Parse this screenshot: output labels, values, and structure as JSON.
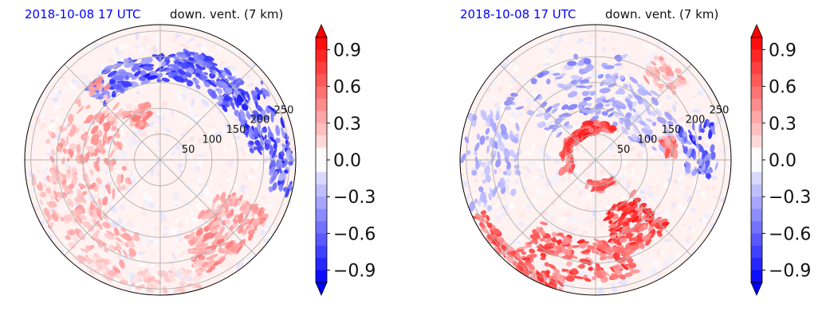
{
  "colors": {
    "negative": "#0000ff",
    "positive": "#ff0000",
    "neutral": "#ffffff",
    "grid": "#b0b0b0",
    "title_date": "#0000ff",
    "title_var": "#111111"
  },
  "panels": [
    {
      "title_left": "2018-10-08 17 UTC",
      "title_right": "down. vent. (7 km)"
    },
    {
      "title_left": "2018-10-08 17 UTC",
      "title_right": "down. vent. (7 km)"
    }
  ],
  "chart_data": [
    {
      "type": "heatmap",
      "projection": "polar",
      "radial_ticks": [
        "50",
        "100",
        "150",
        "200",
        "250"
      ],
      "radial_values": [
        50,
        100,
        150,
        200,
        250
      ],
      "angular_grid_deg": [
        0,
        45,
        90,
        135,
        180,
        225,
        270,
        315
      ],
      "colorbar": {
        "min": -1.0,
        "max": 1.0,
        "levels": 20,
        "extend": "both",
        "cmap": "bwr",
        "ticks": [
          0.9,
          0.6,
          0.3,
          0.0,
          -0.3,
          -0.6,
          -0.9
        ],
        "tick_labels": [
          "0.9",
          "0.6",
          "0.3",
          "0.0",
          "−0.3",
          "−0.6",
          "−0.9"
        ]
      }
    },
    {
      "type": "heatmap",
      "projection": "polar",
      "radial_ticks": [
        "50",
        "100",
        "150",
        "200",
        "250"
      ],
      "radial_values": [
        50,
        100,
        150,
        200,
        250
      ],
      "angular_grid_deg": [
        0,
        45,
        90,
        135,
        180,
        225,
        270,
        315
      ],
      "colorbar": {
        "min": -1.0,
        "max": 1.0,
        "levels": 20,
        "extend": "both",
        "cmap": "bwr",
        "ticks": [
          0.9,
          0.6,
          0.3,
          0.0,
          -0.3,
          -0.6,
          -0.9
        ],
        "tick_labels": [
          "0.9",
          "0.6",
          "0.3",
          "0.0",
          "−0.3",
          "−0.6",
          "−0.9"
        ]
      }
    }
  ]
}
